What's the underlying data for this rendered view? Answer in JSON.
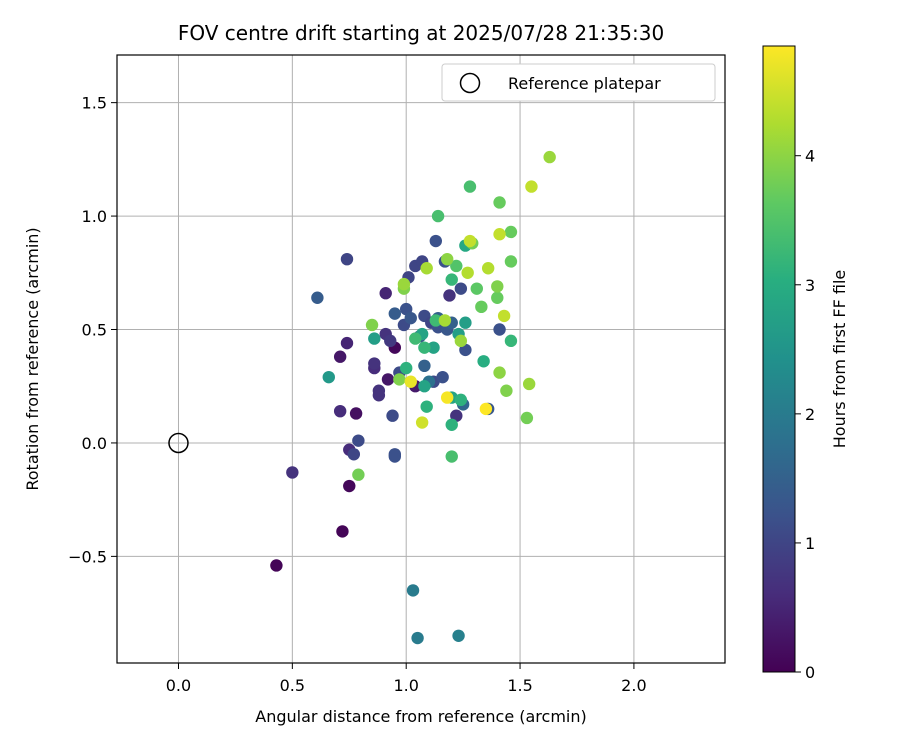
{
  "chart_data": {
    "type": "scatter",
    "title": "FOV centre drift starting at 2025/07/28 21:35:30",
    "xlabel": "Angular distance from reference (arcmin)",
    "ylabel": "Rotation from reference (arcmin)",
    "xlim": [
      -0.27,
      2.4
    ],
    "ylim": [
      -0.97,
      1.71
    ],
    "xticks": [
      0.0,
      0.5,
      1.0,
      1.5,
      2.0
    ],
    "xtick_labels": [
      "0.0",
      "0.5",
      "1.0",
      "1.5",
      "2.0"
    ],
    "yticks": [
      -0.5,
      0.0,
      0.5,
      1.0,
      1.5
    ],
    "ytick_labels": [
      "−0.5",
      "0.0",
      "0.5",
      "1.0",
      "1.5"
    ],
    "grid": true,
    "legend": {
      "label": "Reference platepar",
      "placement": "top-right"
    },
    "reference_point": {
      "x": 0.0,
      "y": 0.0
    },
    "colorbar": {
      "label": "Hours from first FF file",
      "range": [
        0,
        4.85
      ],
      "ticks": [
        0,
        1,
        2,
        3,
        4
      ],
      "tick_labels": [
        "0",
        "1",
        "2",
        "3",
        "4"
      ],
      "colormap": "viridis"
    },
    "points": [
      {
        "x": 0.43,
        "y": -0.54,
        "h": 0.05
      },
      {
        "x": 0.72,
        "y": -0.39,
        "h": 0.05
      },
      {
        "x": 0.75,
        "y": -0.19,
        "h": 0.1
      },
      {
        "x": 0.95,
        "y": 0.42,
        "h": 0.1
      },
      {
        "x": 0.78,
        "y": 0.13,
        "h": 0.2
      },
      {
        "x": 0.71,
        "y": 0.38,
        "h": 0.3
      },
      {
        "x": 0.92,
        "y": 0.28,
        "h": 0.3
      },
      {
        "x": 1.04,
        "y": 0.25,
        "h": 0.35
      },
      {
        "x": 0.91,
        "y": 0.66,
        "h": 0.5
      },
      {
        "x": 0.74,
        "y": 0.44,
        "h": 0.5
      },
      {
        "x": 0.71,
        "y": 0.14,
        "h": 0.6
      },
      {
        "x": 0.75,
        "y": -0.03,
        "h": 0.6
      },
      {
        "x": 0.5,
        "y": -0.13,
        "h": 0.7
      },
      {
        "x": 0.88,
        "y": 0.21,
        "h": 0.7
      },
      {
        "x": 0.88,
        "y": 0.23,
        "h": 0.7
      },
      {
        "x": 0.86,
        "y": 0.33,
        "h": 0.6
      },
      {
        "x": 0.86,
        "y": 0.35,
        "h": 0.7
      },
      {
        "x": 0.91,
        "y": 0.48,
        "h": 0.7
      },
      {
        "x": 0.93,
        "y": 0.45,
        "h": 0.8
      },
      {
        "x": 1.19,
        "y": 0.65,
        "h": 0.7
      },
      {
        "x": 1.22,
        "y": 0.12,
        "h": 0.7
      },
      {
        "x": 0.74,
        "y": 0.81,
        "h": 1.0
      },
      {
        "x": 0.77,
        "y": -0.05,
        "h": 1.0
      },
      {
        "x": 0.79,
        "y": 0.01,
        "h": 1.1
      },
      {
        "x": 0.94,
        "y": 0.12,
        "h": 1.1
      },
      {
        "x": 0.95,
        "y": -0.06,
        "h": 1.2
      },
      {
        "x": 0.95,
        "y": -0.05,
        "h": 1.2
      },
      {
        "x": 0.97,
        "y": 0.31,
        "h": 1.1
      },
      {
        "x": 0.99,
        "y": 0.52,
        "h": 1.1
      },
      {
        "x": 1.0,
        "y": 0.59,
        "h": 1.2
      },
      {
        "x": 1.01,
        "y": 0.73,
        "h": 1.0
      },
      {
        "x": 1.04,
        "y": 0.78,
        "h": 1.0
      },
      {
        "x": 1.07,
        "y": 0.8,
        "h": 1.0
      },
      {
        "x": 1.08,
        "y": 0.56,
        "h": 1.1
      },
      {
        "x": 1.11,
        "y": 0.53,
        "h": 1.0
      },
      {
        "x": 1.12,
        "y": 0.27,
        "h": 1.1
      },
      {
        "x": 1.13,
        "y": 0.89,
        "h": 1.2
      },
      {
        "x": 1.14,
        "y": 0.51,
        "h": 1.2
      },
      {
        "x": 1.16,
        "y": 0.29,
        "h": 1.2
      },
      {
        "x": 1.17,
        "y": 0.8,
        "h": 1.2
      },
      {
        "x": 1.18,
        "y": 0.5,
        "h": 1.3
      },
      {
        "x": 1.24,
        "y": 0.68,
        "h": 1.1
      },
      {
        "x": 1.26,
        "y": 0.41,
        "h": 1.2
      },
      {
        "x": 1.36,
        "y": 0.15,
        "h": 1.3
      },
      {
        "x": 1.41,
        "y": 0.5,
        "h": 1.2
      },
      {
        "x": 0.61,
        "y": 0.64,
        "h": 1.4
      },
      {
        "x": 0.95,
        "y": 0.57,
        "h": 1.4
      },
      {
        "x": 1.02,
        "y": 0.55,
        "h": 1.3
      },
      {
        "x": 1.06,
        "y": 0.47,
        "h": 1.3
      },
      {
        "x": 1.08,
        "y": 0.34,
        "h": 1.5
      },
      {
        "x": 1.14,
        "y": 0.55,
        "h": 1.5
      },
      {
        "x": 1.2,
        "y": 0.53,
        "h": 1.5
      },
      {
        "x": 1.25,
        "y": 0.17,
        "h": 1.6
      },
      {
        "x": 1.03,
        "y": -0.65,
        "h": 2.0
      },
      {
        "x": 1.05,
        "y": -0.86,
        "h": 2.0
      },
      {
        "x": 1.23,
        "y": -0.85,
        "h": 2.1
      },
      {
        "x": 1.1,
        "y": 0.27,
        "h": 1.8
      },
      {
        "x": 0.66,
        "y": 0.29,
        "h": 2.6
      },
      {
        "x": 0.86,
        "y": 0.46,
        "h": 2.7
      },
      {
        "x": 1.07,
        "y": 0.48,
        "h": 2.8
      },
      {
        "x": 1.08,
        "y": 0.25,
        "h": 2.8
      },
      {
        "x": 1.12,
        "y": 0.42,
        "h": 2.8
      },
      {
        "x": 1.2,
        "y": 0.2,
        "h": 2.8
      },
      {
        "x": 1.23,
        "y": 0.48,
        "h": 2.7
      },
      {
        "x": 1.26,
        "y": 0.53,
        "h": 2.7
      },
      {
        "x": 1.26,
        "y": 0.87,
        "h": 2.9
      },
      {
        "x": 1.34,
        "y": 0.36,
        "h": 3.0
      },
      {
        "x": 1.2,
        "y": 0.08,
        "h": 3.1
      },
      {
        "x": 1.09,
        "y": 0.16,
        "h": 3.1
      },
      {
        "x": 1.24,
        "y": 0.19,
        "h": 3.1
      },
      {
        "x": 1.0,
        "y": 0.33,
        "h": 3.1
      },
      {
        "x": 1.08,
        "y": 0.42,
        "h": 3.2
      },
      {
        "x": 1.2,
        "y": 0.72,
        "h": 3.2
      },
      {
        "x": 1.46,
        "y": 0.45,
        "h": 3.2
      },
      {
        "x": 1.13,
        "y": 0.54,
        "h": 3.3
      },
      {
        "x": 1.04,
        "y": 0.46,
        "h": 3.3
      },
      {
        "x": 1.14,
        "y": 1.0,
        "h": 3.4
      },
      {
        "x": 1.28,
        "y": 1.13,
        "h": 3.4
      },
      {
        "x": 1.2,
        "y": -0.06,
        "h": 3.4
      },
      {
        "x": 1.22,
        "y": 0.78,
        "h": 3.5
      },
      {
        "x": 1.31,
        "y": 0.68,
        "h": 3.6
      },
      {
        "x": 1.33,
        "y": 0.6,
        "h": 3.7
      },
      {
        "x": 1.41,
        "y": 1.06,
        "h": 3.7
      },
      {
        "x": 1.46,
        "y": 0.93,
        "h": 3.7
      },
      {
        "x": 1.46,
        "y": 0.8,
        "h": 3.7
      },
      {
        "x": 1.4,
        "y": 0.64,
        "h": 3.7
      },
      {
        "x": 1.29,
        "y": 0.88,
        "h": 3.8
      },
      {
        "x": 0.79,
        "y": -0.14,
        "h": 3.8
      },
      {
        "x": 1.53,
        "y": 0.11,
        "h": 3.8
      },
      {
        "x": 0.97,
        "y": 0.28,
        "h": 3.9
      },
      {
        "x": 0.85,
        "y": 0.52,
        "h": 3.9
      },
      {
        "x": 0.99,
        "y": 0.68,
        "h": 3.9
      },
      {
        "x": 1.4,
        "y": 0.69,
        "h": 3.9
      },
      {
        "x": 1.44,
        "y": 0.23,
        "h": 3.9
      },
      {
        "x": 1.41,
        "y": 0.31,
        "h": 4.0
      },
      {
        "x": 1.18,
        "y": 0.81,
        "h": 4.0
      },
      {
        "x": 1.24,
        "y": 0.45,
        "h": 4.1
      },
      {
        "x": 1.54,
        "y": 0.26,
        "h": 4.1
      },
      {
        "x": 1.63,
        "y": 1.26,
        "h": 4.1
      },
      {
        "x": 0.99,
        "y": 0.7,
        "h": 4.1
      },
      {
        "x": 1.09,
        "y": 0.77,
        "h": 4.2
      },
      {
        "x": 1.17,
        "y": 0.54,
        "h": 4.2
      },
      {
        "x": 1.27,
        "y": 0.75,
        "h": 4.3
      },
      {
        "x": 1.36,
        "y": 0.77,
        "h": 4.3
      },
      {
        "x": 1.28,
        "y": 0.89,
        "h": 4.4
      },
      {
        "x": 1.41,
        "y": 0.92,
        "h": 4.4
      },
      {
        "x": 1.43,
        "y": 0.56,
        "h": 4.4
      },
      {
        "x": 1.55,
        "y": 1.13,
        "h": 4.4
      },
      {
        "x": 1.07,
        "y": 0.09,
        "h": 4.5
      },
      {
        "x": 1.02,
        "y": 0.27,
        "h": 4.7
      },
      {
        "x": 1.18,
        "y": 0.2,
        "h": 4.8
      },
      {
        "x": 1.35,
        "y": 0.15,
        "h": 4.85
      }
    ]
  }
}
